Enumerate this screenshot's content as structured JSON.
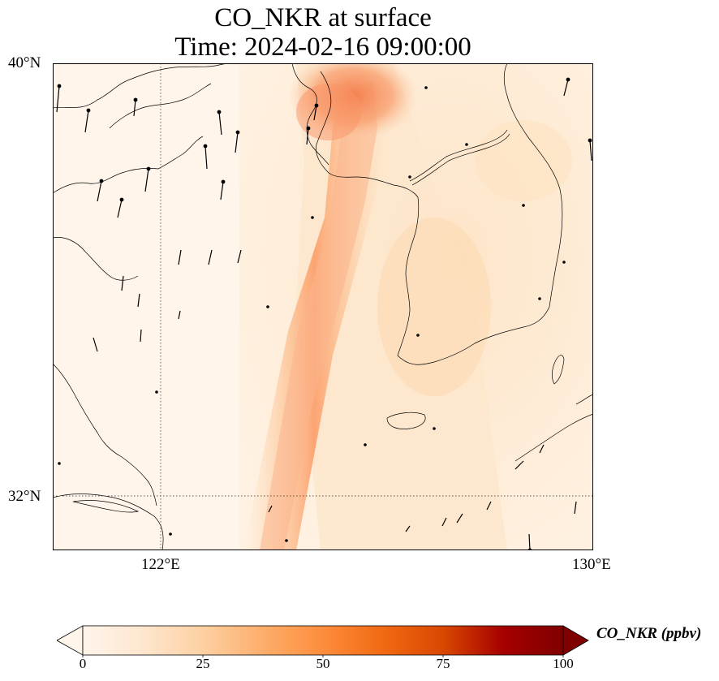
{
  "title_line1": "CO_NKR at surface",
  "title_line2": "Time: 2024-02-16 09:00:00",
  "map": {
    "lat_labels": [
      {
        "label": "40°N",
        "lat": 40
      },
      {
        "label": "32°N",
        "lat": 32
      }
    ],
    "lon_labels": [
      {
        "label": "122°E",
        "lon": 122
      },
      {
        "label": "130°E",
        "lon": 130
      }
    ],
    "extent": {
      "lon_min": 120,
      "lon_max": 130,
      "lat_min": 31,
      "lat_max": 40
    },
    "gridlines": {
      "lats": [
        32
      ],
      "lons": [
        122
      ],
      "style": "dotted"
    }
  },
  "colorbar": {
    "label": "CO_NKR (ppbv)",
    "min": 0,
    "max": 100,
    "ticks": [
      "0",
      "25",
      "50",
      "75",
      "100"
    ],
    "colors": [
      "#fff5eb",
      "#fee6ce",
      "#fdd0a2",
      "#fdae6b",
      "#fd8d3c",
      "#f16913",
      "#d94801",
      "#a60000",
      "#7f0000"
    ],
    "extend": "both"
  }
}
